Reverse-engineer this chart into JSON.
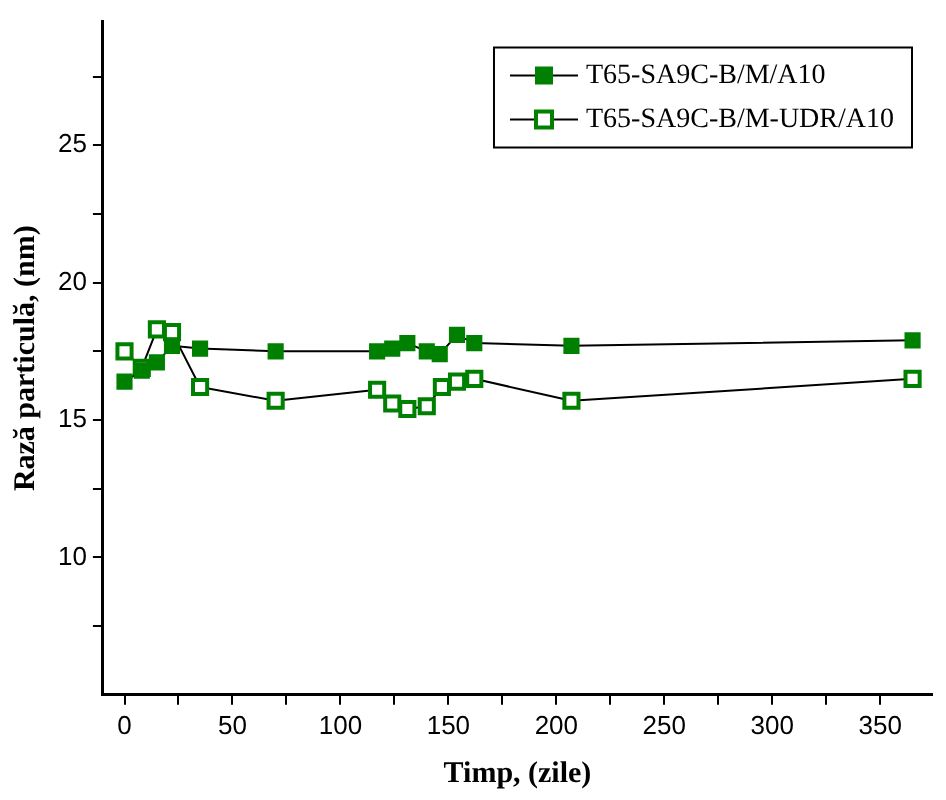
{
  "chart_data": {
    "type": "line",
    "xlabel": "Timp, (zile)",
    "ylabel": "Rază particulă, (nm)",
    "xlim": [
      -10,
      374
    ],
    "ylim": [
      5,
      29.5
    ],
    "xticks": [
      0,
      {
        "value": 25,
        "label": null
      },
      50,
      {
        "value": 75,
        "label": null
      },
      100,
      {
        "value": 125,
        "label": null
      },
      150,
      {
        "value": 175,
        "label": null
      },
      200,
      {
        "value": 225,
        "label": null
      },
      250,
      {
        "value": 275,
        "label": null
      },
      300,
      {
        "value": 325,
        "label": null
      },
      350
    ],
    "yticks": [
      {
        "value": 7.5,
        "label": null
      },
      10,
      {
        "value": 12.5,
        "label": null
      },
      15,
      {
        "value": 17.5,
        "label": null
      },
      20,
      {
        "value": 22.5,
        "label": null
      },
      25,
      {
        "value": 27.5,
        "label": null
      }
    ],
    "grid": false,
    "legend": "top right",
    "marker": "square",
    "line_style": "solid",
    "series": [
      {
        "name": "T65-SA9C-B/M/A10",
        "color": "#008000",
        "x": [
          0,
          8,
          15,
          22,
          35,
          70,
          117,
          124,
          131,
          140,
          146,
          154,
          162,
          207,
          365
        ],
        "values": [
          16.4,
          16.8,
          17.1,
          17.7,
          17.6,
          17.5,
          17.5,
          17.6,
          17.8,
          17.5,
          17.4,
          18.1,
          17.8,
          17.7,
          17.9
        ]
      },
      {
        "name": "T65-SA9C-B/M-UDR/A10",
        "color": "#008000",
        "x": [
          0,
          8,
          15,
          22,
          35,
          70,
          117,
          124,
          131,
          140,
          147,
          154,
          162,
          207,
          365
        ],
        "values": [
          17.5,
          16.9,
          18.3,
          18.2,
          16.2,
          15.7,
          16.1,
          15.6,
          15.4,
          15.5,
          16.2,
          16.4,
          16.5,
          15.7,
          16.5
        ]
      }
    ]
  }
}
